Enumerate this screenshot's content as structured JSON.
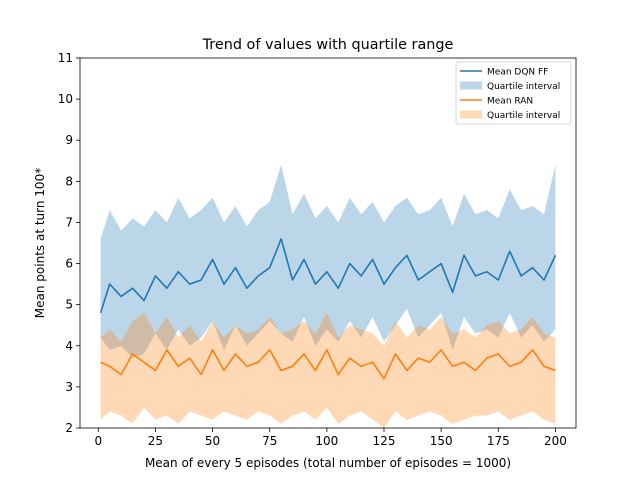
{
  "chart_data": {
    "type": "line",
    "title": "Trend of values with quartile range",
    "xlabel": "Mean of every 5 episodes (total number of episodes = 1000)",
    "ylabel": "Mean points at turn 100*",
    "xlim": [
      -8,
      209
    ],
    "ylim": [
      2,
      11
    ],
    "xticks": [
      "0",
      "25",
      "50",
      "75",
      "100",
      "125",
      "150",
      "175",
      "200"
    ],
    "yticks": [
      "2",
      "3",
      "4",
      "5",
      "6",
      "7",
      "8",
      "9",
      "10",
      "11"
    ],
    "grid": false,
    "legend_position": "top-right",
    "legend": [
      {
        "label": "Mean DQN FF",
        "kind": "line",
        "color": "#1f77b4"
      },
      {
        "label": "Quartile interval",
        "kind": "band",
        "color": "#1f77b4"
      },
      {
        "label": "Mean RAN",
        "kind": "line",
        "color": "#ff7f0e"
      },
      {
        "label": "Quartile interval",
        "kind": "band",
        "color": "#ff7f0e"
      }
    ],
    "x": [
      1,
      5,
      10,
      15,
      20,
      25,
      30,
      35,
      40,
      45,
      50,
      55,
      60,
      65,
      70,
      75,
      80,
      85,
      90,
      95,
      100,
      105,
      110,
      115,
      120,
      125,
      130,
      135,
      140,
      145,
      150,
      155,
      160,
      165,
      170,
      175,
      180,
      185,
      190,
      195,
      200
    ],
    "series": [
      {
        "name": "Mean DQN FF",
        "color": "#1f77b4",
        "mean": [
          4.8,
          5.5,
          5.2,
          5.4,
          5.1,
          5.7,
          5.4,
          5.8,
          5.5,
          5.6,
          6.1,
          5.5,
          5.9,
          5.4,
          5.7,
          5.9,
          6.6,
          5.6,
          6.1,
          5.5,
          5.8,
          5.4,
          6.0,
          5.7,
          6.1,
          5.5,
          5.9,
          6.2,
          5.6,
          5.8,
          6.0,
          5.3,
          6.2,
          5.7,
          5.8,
          5.6,
          6.3,
          5.7,
          5.9,
          5.6,
          6.2
        ],
        "q1": [
          4.2,
          3.9,
          4.0,
          3.7,
          3.8,
          4.3,
          3.9,
          4.4,
          4.0,
          4.2,
          4.6,
          3.9,
          4.5,
          4.0,
          4.3,
          4.6,
          4.3,
          4.1,
          4.7,
          4.0,
          4.4,
          4.1,
          4.6,
          4.2,
          4.7,
          4.1,
          4.5,
          4.9,
          4.2,
          4.5,
          4.8,
          3.9,
          4.7,
          4.3,
          4.4,
          4.2,
          4.8,
          4.2,
          4.5,
          4.1,
          4.4
        ],
        "q3": [
          6.6,
          7.3,
          6.8,
          7.1,
          6.9,
          7.3,
          7.0,
          7.6,
          7.1,
          7.3,
          7.6,
          7.0,
          7.4,
          6.9,
          7.3,
          7.5,
          8.4,
          7.2,
          7.7,
          7.1,
          7.4,
          7.0,
          7.6,
          7.2,
          7.5,
          7.0,
          7.4,
          7.6,
          7.2,
          7.3,
          7.6,
          6.9,
          7.7,
          7.2,
          7.3,
          7.1,
          7.8,
          7.3,
          7.4,
          7.2,
          8.4
        ]
      },
      {
        "name": "Mean RAN",
        "color": "#ff7f0e",
        "mean": [
          3.6,
          3.5,
          3.3,
          3.8,
          3.6,
          3.4,
          3.9,
          3.5,
          3.7,
          3.3,
          3.9,
          3.4,
          3.8,
          3.5,
          3.6,
          3.9,
          3.4,
          3.5,
          3.8,
          3.4,
          3.9,
          3.3,
          3.7,
          3.5,
          3.6,
          3.2,
          3.8,
          3.4,
          3.7,
          3.6,
          3.9,
          3.5,
          3.6,
          3.4,
          3.7,
          3.8,
          3.5,
          3.6,
          3.9,
          3.5,
          3.4
        ],
        "q1": [
          2.2,
          2.4,
          2.3,
          2.1,
          2.5,
          2.2,
          2.3,
          2.1,
          2.4,
          2.3,
          2.2,
          2.4,
          2.3,
          2.2,
          2.4,
          2.3,
          2.1,
          2.3,
          2.4,
          2.2,
          2.5,
          2.1,
          2.3,
          2.4,
          2.2,
          2.0,
          2.4,
          2.2,
          2.3,
          2.4,
          2.3,
          2.1,
          2.2,
          2.3,
          2.3,
          2.4,
          2.2,
          2.3,
          2.4,
          2.2,
          2.1
        ],
        "q3": [
          4.2,
          4.4,
          4.1,
          4.6,
          4.8,
          4.3,
          4.7,
          4.2,
          4.5,
          4.1,
          4.6,
          4.2,
          4.5,
          4.3,
          4.4,
          4.7,
          4.3,
          4.4,
          4.6,
          4.3,
          4.8,
          4.2,
          4.5,
          4.4,
          4.3,
          4.0,
          4.6,
          4.2,
          4.5,
          4.4,
          4.7,
          4.3,
          4.4,
          4.2,
          4.5,
          4.6,
          4.3,
          4.4,
          4.7,
          4.3,
          4.2
        ]
      }
    ]
  }
}
